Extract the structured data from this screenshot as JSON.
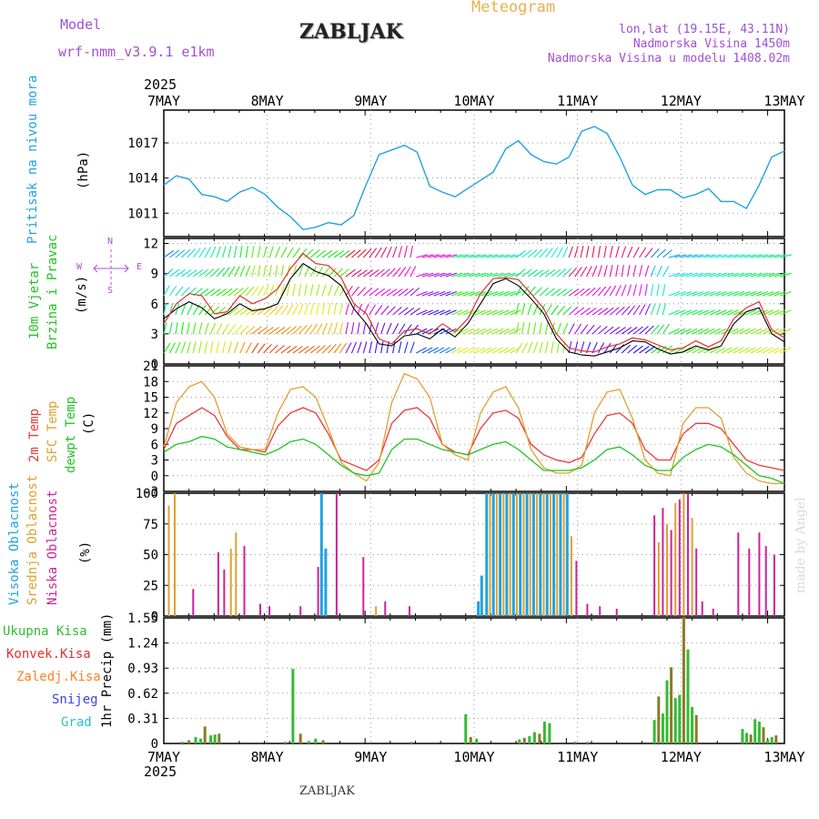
{
  "header": {
    "model_label": "Model",
    "model_name": "wrf-nmm_v3.9.1  e1km",
    "station": "ZABLJAK",
    "title": "Meteogram",
    "lonlat": "lon,lat (19.15E, 43.11N)",
    "elevation": "Nadmorska Visina 1450m",
    "model_elevation": "Nadmorska Visina u modelu 1408.02m"
  },
  "footer": {
    "station": "ZABLJAK",
    "credit": "made by Angel"
  },
  "colors": {
    "pressure": "#1fa3e0",
    "wind_label": "#22c322",
    "wind_speed": "#000000",
    "wind_gust": "#e03030",
    "compass": "#b04fd0",
    "temp2m": "#e83a3a",
    "sfc_temp": "#e0a030",
    "dewpoint": "#22c322",
    "cloud_high": "#1fa3e0",
    "cloud_mid": "#e0a030",
    "cloud_low": "#cc2299",
    "precip_total": "#33bb33",
    "precip_conv": "#e03030",
    "precip_frozen": "#ff7f27",
    "snow": "#4040e0",
    "graupel": "#30c0c0",
    "model": "#a050d0",
    "title": "#e8b050"
  },
  "chart_data": [
    {
      "id": "pressure",
      "type": "line",
      "title": "",
      "ylabel": "Pritisak na nivou mora",
      "unit": "(hPa)",
      "ylim": [
        1009,
        1019.8
      ],
      "yticks": [
        "1011",
        "1014",
        "1017"
      ],
      "ytick_values": [
        1011,
        1014,
        1017
      ],
      "x_top_year": "2025",
      "x_top": [
        "7MAY",
        "8MAY",
        "9MAY",
        "10MAY",
        "11MAY",
        "12MAY",
        "13MAY"
      ],
      "series": [
        {
          "color": "pressure",
          "values": [
            1013.4,
            1014.2,
            1013.9,
            1012.6,
            1012.4,
            1012.0,
            1012.8,
            1013.2,
            1012.6,
            1011.5,
            1010.7,
            1009.6,
            1009.8,
            1010.2,
            1010.0,
            1010.8,
            1013.5,
            1016.0,
            1016.4,
            1016.8,
            1016.2,
            1013.3,
            1012.8,
            1012.4,
            1013.1,
            1013.8,
            1014.5,
            1016.5,
            1017.2,
            1016.0,
            1015.4,
            1015.2,
            1015.8,
            1018.0,
            1018.4,
            1017.8,
            1015.8,
            1013.4,
            1012.6,
            1013.0,
            1013.0,
            1012.3,
            1012.6,
            1013.1,
            1012.0,
            1012.0,
            1011.4,
            1013.4,
            1015.8,
            1016.3
          ]
        }
      ]
    },
    {
      "id": "wind",
      "type": "line",
      "title": "",
      "ylabel": "10m Vjetar",
      "ylabel2": "Brzina i Pravac",
      "unit": "(m/s)",
      "compass": {
        "n": "N",
        "s": "S",
        "e": "E",
        "w": "W"
      },
      "ylim": [
        0,
        12.5
      ],
      "yticks": [
        "0",
        "3",
        "6",
        "9",
        "12"
      ],
      "ytick_values": [
        0,
        3,
        6,
        9,
        12
      ],
      "series": [
        {
          "name": "speed",
          "color": "wind_speed",
          "values": [
            4.5,
            5.5,
            6.2,
            5.6,
            4.5,
            5.0,
            6.0,
            5.3,
            5.5,
            6.0,
            8.5,
            10.0,
            9.2,
            8.8,
            7.8,
            5.5,
            4.0,
            2.0,
            1.8,
            2.8,
            3.0,
            2.5,
            3.5,
            2.7,
            4.0,
            6.0,
            8.0,
            8.5,
            7.8,
            6.5,
            5.0,
            2.5,
            1.2,
            0.9,
            0.8,
            1.2,
            1.6,
            2.3,
            2.2,
            1.5,
            1.0,
            1.2,
            1.8,
            1.4,
            1.8,
            4.0,
            5.2,
            5.6,
            3.0,
            2.2
          ]
        },
        {
          "name": "gust",
          "color": "wind_gust",
          "values": [
            4.0,
            6.0,
            7.0,
            6.8,
            5.0,
            5.2,
            6.8,
            6.0,
            6.5,
            7.5,
            9.5,
            11.0,
            10.0,
            9.8,
            8.6,
            6.0,
            5.0,
            2.5,
            2.0,
            3.3,
            3.5,
            3.0,
            4.0,
            3.2,
            4.5,
            7.0,
            8.5,
            8.6,
            8.4,
            7.0,
            5.5,
            3.0,
            1.6,
            1.3,
            1.2,
            1.7,
            2.0,
            2.6,
            2.4,
            1.9,
            1.4,
            1.6,
            2.3,
            1.7,
            2.3,
            4.5,
            5.6,
            6.2,
            3.4,
            2.6
          ]
        }
      ]
    },
    {
      "id": "temperature",
      "type": "line",
      "title": "",
      "ylabels": [
        "2m Temp",
        "SFC Temp",
        "dewpt Temp"
      ],
      "unit": "(C)",
      "ylim": [
        -3,
        21
      ],
      "yticks": [
        "-3",
        "0",
        "3",
        "6",
        "9",
        "12",
        "15",
        "18",
        "21"
      ],
      "ytick_values": [
        -3,
        0,
        3,
        6,
        9,
        12,
        15,
        18,
        21
      ],
      "series": [
        {
          "name": "2m Temp",
          "color": "temp2m",
          "values": [
            5.0,
            10.0,
            11.5,
            13.0,
            11.5,
            7.5,
            5.0,
            5.0,
            4.5,
            9.5,
            12.0,
            13.0,
            12.0,
            8.0,
            3.0,
            2.0,
            1.0,
            3.0,
            10.0,
            12.5,
            13.0,
            11.0,
            6.0,
            4.5,
            4.0,
            9.0,
            12.0,
            12.5,
            11.0,
            6.0,
            4.0,
            3.0,
            2.5,
            3.5,
            8.0,
            11.5,
            12.0,
            10.0,
            5.0,
            3.0,
            3.0,
            8.0,
            10.0,
            10.0,
            9.0,
            6.0,
            3.0,
            2.0,
            1.5,
            1.0
          ]
        },
        {
          "name": "SFC Temp",
          "color": "sfc_temp",
          "values": [
            5.5,
            14.0,
            17.0,
            18.0,
            15.0,
            8.0,
            5.5,
            5.0,
            5.0,
            12.0,
            16.5,
            17.0,
            15.0,
            9.0,
            2.5,
            0.5,
            -1.0,
            2.5,
            14.0,
            19.5,
            18.5,
            15.0,
            6.0,
            4.0,
            3.0,
            12.0,
            16.0,
            17.0,
            13.0,
            5.0,
            1.5,
            0.5,
            0.5,
            2.0,
            12.0,
            16.0,
            16.5,
            11.0,
            3.0,
            0.5,
            0.0,
            10.0,
            13.0,
            13.0,
            11.0,
            3.5,
            0.5,
            -1.0,
            -1.5,
            -1.5
          ]
        },
        {
          "name": "dewpt Temp",
          "color": "dewpoint",
          "values": [
            4.5,
            6.0,
            6.5,
            7.5,
            7.0,
            5.5,
            5.0,
            4.5,
            4.0,
            5.0,
            6.5,
            7.0,
            6.0,
            4.0,
            2.0,
            0.5,
            0.0,
            0.5,
            5.0,
            7.0,
            7.0,
            6.0,
            5.0,
            4.5,
            4.0,
            5.0,
            6.0,
            6.5,
            5.0,
            3.0,
            1.0,
            1.0,
            1.0,
            1.5,
            3.0,
            5.0,
            5.5,
            4.0,
            2.0,
            1.0,
            1.0,
            3.5,
            5.0,
            6.0,
            5.5,
            4.0,
            2.0,
            0.0,
            -0.5,
            -1.5
          ]
        }
      ]
    },
    {
      "id": "clouds",
      "type": "bar",
      "title": "",
      "ylabels": [
        "Visoka Oblacnost",
        "Srednja Oblacnost",
        "Niska Oblacnost"
      ],
      "unit": "(%)",
      "ylim": [
        0,
        100
      ],
      "yticks": [
        "0",
        "25",
        "50",
        "75",
        "100"
      ],
      "ytick_values": [
        0,
        25,
        50,
        75,
        100
      ],
      "bars": [
        {
          "t": 0.6,
          "v": 90,
          "s": "cloud_mid"
        },
        {
          "t": 1.3,
          "v": 100,
          "s": "cloud_mid"
        },
        {
          "t": 3.5,
          "v": 22,
          "s": "cloud_low"
        },
        {
          "t": 6.5,
          "v": 52,
          "s": "cloud_low"
        },
        {
          "t": 7.2,
          "v": 38,
          "s": "cloud_low"
        },
        {
          "t": 8.0,
          "v": 55,
          "s": "cloud_mid"
        },
        {
          "t": 8.6,
          "v": 68,
          "s": "cloud_mid"
        },
        {
          "t": 9.6,
          "v": 57,
          "s": "cloud_low"
        },
        {
          "t": 11.5,
          "v": 10,
          "s": "cloud_low"
        },
        {
          "t": 12.6,
          "v": 8,
          "s": "cloud_low"
        },
        {
          "t": 16.3,
          "v": 8,
          "s": "cloud_low"
        },
        {
          "t": 18.4,
          "v": 40,
          "s": "cloud_low"
        },
        {
          "t": 18.8,
          "v": 100,
          "s": "cloud_high"
        },
        {
          "t": 19.3,
          "v": 55,
          "s": "cloud_high"
        },
        {
          "t": 20.6,
          "v": 100,
          "s": "cloud_low"
        },
        {
          "t": 23.8,
          "v": 48,
          "s": "cloud_low"
        },
        {
          "t": 25.3,
          "v": 8,
          "s": "cloud_mid"
        },
        {
          "t": 26.4,
          "v": 12,
          "s": "cloud_low"
        },
        {
          "t": 29.3,
          "v": 8,
          "s": "cloud_low"
        },
        {
          "t": 37.5,
          "v": 12,
          "s": "cloud_high"
        },
        {
          "t": 37.9,
          "v": 33,
          "s": "cloud_high"
        },
        {
          "t": 38.5,
          "v": 100,
          "s": "cloud_high"
        },
        {
          "t": 38.9,
          "v": 100,
          "s": "cloud_mid"
        },
        {
          "t": 39.3,
          "v": 100,
          "s": "cloud_high"
        },
        {
          "t": 39.7,
          "v": 100,
          "s": "cloud_mid"
        },
        {
          "t": 40.1,
          "v": 100,
          "s": "cloud_high"
        },
        {
          "t": 40.5,
          "v": 100,
          "s": "cloud_mid"
        },
        {
          "t": 40.9,
          "v": 100,
          "s": "cloud_high"
        },
        {
          "t": 41.3,
          "v": 100,
          "s": "cloud_mid"
        },
        {
          "t": 41.7,
          "v": 100,
          "s": "cloud_high"
        },
        {
          "t": 42.1,
          "v": 100,
          "s": "cloud_mid"
        },
        {
          "t": 42.5,
          "v": 100,
          "s": "cloud_high"
        },
        {
          "t": 42.9,
          "v": 100,
          "s": "cloud_mid"
        },
        {
          "t": 43.3,
          "v": 100,
          "s": "cloud_high"
        },
        {
          "t": 43.7,
          "v": 100,
          "s": "cloud_mid"
        },
        {
          "t": 44.1,
          "v": 100,
          "s": "cloud_high"
        },
        {
          "t": 44.5,
          "v": 100,
          "s": "cloud_mid"
        },
        {
          "t": 44.9,
          "v": 100,
          "s": "cloud_high"
        },
        {
          "t": 45.3,
          "v": 100,
          "s": "cloud_mid"
        },
        {
          "t": 45.7,
          "v": 100,
          "s": "cloud_high"
        },
        {
          "t": 46.1,
          "v": 100,
          "s": "cloud_mid"
        },
        {
          "t": 46.5,
          "v": 100,
          "s": "cloud_high"
        },
        {
          "t": 46.9,
          "v": 100,
          "s": "cloud_mid"
        },
        {
          "t": 47.3,
          "v": 100,
          "s": "cloud_high"
        },
        {
          "t": 47.7,
          "v": 100,
          "s": "cloud_mid"
        },
        {
          "t": 48.1,
          "v": 100,
          "s": "cloud_high"
        },
        {
          "t": 48.6,
          "v": 65,
          "s": "cloud_mid"
        },
        {
          "t": 49.2,
          "v": 45,
          "s": "cloud_low"
        },
        {
          "t": 50.5,
          "v": 10,
          "s": "cloud_low"
        },
        {
          "t": 52.0,
          "v": 8,
          "s": "cloud_low"
        },
        {
          "t": 54.0,
          "v": 6,
          "s": "cloud_low"
        },
        {
          "t": 58.5,
          "v": 82,
          "s": "cloud_low"
        },
        {
          "t": 59.0,
          "v": 60,
          "s": "cloud_mid"
        },
        {
          "t": 59.5,
          "v": 88,
          "s": "cloud_low"
        },
        {
          "t": 60.0,
          "v": 75,
          "s": "cloud_mid"
        },
        {
          "t": 60.5,
          "v": 70,
          "s": "cloud_low"
        },
        {
          "t": 61.0,
          "v": 92,
          "s": "cloud_mid"
        },
        {
          "t": 61.5,
          "v": 95,
          "s": "cloud_low"
        },
        {
          "t": 62.0,
          "v": 100,
          "s": "cloud_mid"
        },
        {
          "t": 62.5,
          "v": 100,
          "s": "cloud_low"
        },
        {
          "t": 63.0,
          "v": 80,
          "s": "cloud_mid"
        },
        {
          "t": 63.5,
          "v": 55,
          "s": "cloud_low"
        },
        {
          "t": 64.2,
          "v": 12,
          "s": "cloud_low"
        },
        {
          "t": 65.5,
          "v": 6,
          "s": "cloud_low"
        },
        {
          "t": 68.5,
          "v": 68,
          "s": "cloud_low"
        },
        {
          "t": 69.8,
          "v": 55,
          "s": "cloud_low"
        },
        {
          "t": 71.0,
          "v": 68,
          "s": "cloud_low"
        },
        {
          "t": 71.8,
          "v": 57,
          "s": "cloud_low"
        },
        {
          "t": 72.8,
          "v": 50,
          "s": "cloud_low"
        }
      ]
    },
    {
      "id": "precip",
      "type": "bar",
      "title": "",
      "ylabels": [
        "Ukupna Kisa",
        "Konvek.Kisa",
        "Zaledj.Kisa",
        "Snijeg",
        "Grad"
      ],
      "unit": "1hr Precip (mm)",
      "ylim": [
        0,
        1.55
      ],
      "yticks": [
        "0",
        "0.31",
        "0.62",
        "0.93",
        "1.24",
        "1.55"
      ],
      "ytick_values": [
        0,
        0.31,
        0.62,
        0.93,
        1.24,
        1.55
      ],
      "x_bottom": [
        "7MAY",
        "8MAY",
        "9MAY",
        "10MAY",
        "11MAY",
        "12MAY",
        "13MAY"
      ],
      "x_bottom_year": "2025",
      "bars": [
        {
          "t": 2.2,
          "v": 0.02
        },
        {
          "t": 3.0,
          "v": 0.04
        },
        {
          "t": 3.8,
          "v": 0.08
        },
        {
          "t": 4.4,
          "v": 0.06
        },
        {
          "t": 4.9,
          "v": 0.21
        },
        {
          "t": 5.6,
          "v": 0.1
        },
        {
          "t": 6.1,
          "v": 0.11
        },
        {
          "t": 6.6,
          "v": 0.12
        },
        {
          "t": 14.5,
          "v": 0.02
        },
        {
          "t": 15.4,
          "v": 0.92
        },
        {
          "t": 16.3,
          "v": 0.12
        },
        {
          "t": 17.3,
          "v": 0.03
        },
        {
          "t": 18.1,
          "v": 0.06
        },
        {
          "t": 19.0,
          "v": 0.04
        },
        {
          "t": 29.5,
          "v": 0.02
        },
        {
          "t": 36.0,
          "v": 0.36
        },
        {
          "t": 36.6,
          "v": 0.08
        },
        {
          "t": 37.3,
          "v": 0.06
        },
        {
          "t": 42.4,
          "v": 0.05
        },
        {
          "t": 43.0,
          "v": 0.07
        },
        {
          "t": 43.6,
          "v": 0.09
        },
        {
          "t": 44.2,
          "v": 0.14
        },
        {
          "t": 44.8,
          "v": 0.12
        },
        {
          "t": 45.4,
          "v": 0.27
        },
        {
          "t": 46.0,
          "v": 0.25
        },
        {
          "t": 49.0,
          "v": 0.02
        },
        {
          "t": 50.5,
          "v": 0.02
        },
        {
          "t": 58.5,
          "v": 0.29
        },
        {
          "t": 59.0,
          "v": 0.58
        },
        {
          "t": 59.5,
          "v": 0.37
        },
        {
          "t": 60.0,
          "v": 0.78
        },
        {
          "t": 60.5,
          "v": 0.94
        },
        {
          "t": 61.0,
          "v": 0.56
        },
        {
          "t": 61.5,
          "v": 0.6
        },
        {
          "t": 62.0,
          "v": 1.56
        },
        {
          "t": 62.5,
          "v": 1.16
        },
        {
          "t": 63.0,
          "v": 0.45
        },
        {
          "t": 63.5,
          "v": 0.35
        },
        {
          "t": 69.0,
          "v": 0.18
        },
        {
          "t": 69.5,
          "v": 0.13
        },
        {
          "t": 70.0,
          "v": 0.11
        },
        {
          "t": 70.5,
          "v": 0.3
        },
        {
          "t": 71.0,
          "v": 0.27
        },
        {
          "t": 71.5,
          "v": 0.2
        },
        {
          "t": 72.0,
          "v": 0.05
        },
        {
          "t": 72.5,
          "v": 0.08
        },
        {
          "t": 73.0,
          "v": 0.1
        }
      ]
    }
  ]
}
